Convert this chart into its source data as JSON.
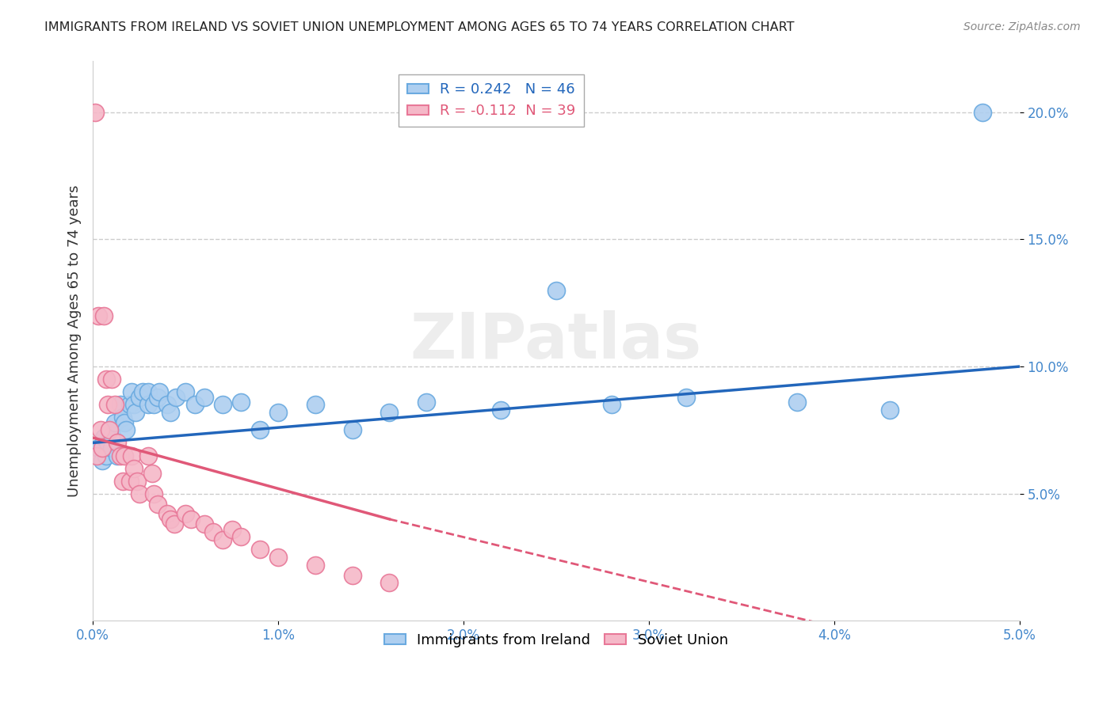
{
  "title": "IMMIGRANTS FROM IRELAND VS SOVIET UNION UNEMPLOYMENT AMONG AGES 65 TO 74 YEARS CORRELATION CHART",
  "source": "Source: ZipAtlas.com",
  "ylabel": "Unemployment Among Ages 65 to 74 years",
  "xmin": 0.0,
  "xmax": 0.05,
  "ymin": 0.0,
  "ymax": 0.22,
  "ireland_color": "#aecff0",
  "ireland_edge": "#6aaae0",
  "soviet_color": "#f5b8c8",
  "soviet_edge": "#e87898",
  "ireland_R": 0.242,
  "ireland_N": 46,
  "soviet_R": -0.112,
  "soviet_N": 39,
  "ireland_line_color": "#2266bb",
  "soviet_line_color": "#e05878",
  "watermark": "ZIPatlas",
  "legend_ireland": "Immigrants from Ireland",
  "legend_soviet": "Soviet Union",
  "ireland_x": [
    0.0003,
    0.0005,
    0.0006,
    0.0007,
    0.0008,
    0.0009,
    0.001,
    0.001,
    0.0012,
    0.0013,
    0.0015,
    0.0016,
    0.0017,
    0.0018,
    0.002,
    0.0021,
    0.0022,
    0.0023,
    0.0025,
    0.0027,
    0.003,
    0.003,
    0.0033,
    0.0035,
    0.0036,
    0.004,
    0.0042,
    0.0045,
    0.005,
    0.0055,
    0.006,
    0.007,
    0.008,
    0.009,
    0.01,
    0.012,
    0.014,
    0.016,
    0.018,
    0.022,
    0.025,
    0.028,
    0.032,
    0.038,
    0.043,
    0.048
  ],
  "ireland_y": [
    0.068,
    0.063,
    0.072,
    0.065,
    0.07,
    0.075,
    0.068,
    0.073,
    0.078,
    0.065,
    0.085,
    0.08,
    0.078,
    0.075,
    0.085,
    0.09,
    0.085,
    0.082,
    0.088,
    0.09,
    0.085,
    0.09,
    0.085,
    0.088,
    0.09,
    0.085,
    0.082,
    0.088,
    0.09,
    0.085,
    0.088,
    0.085,
    0.086,
    0.075,
    0.082,
    0.085,
    0.075,
    0.082,
    0.086,
    0.083,
    0.13,
    0.085,
    0.088,
    0.086,
    0.083,
    0.2
  ],
  "soviet_x": [
    0.0001,
    0.0002,
    0.0003,
    0.0004,
    0.0005,
    0.0006,
    0.0007,
    0.0008,
    0.0009,
    0.001,
    0.0012,
    0.0013,
    0.0015,
    0.0016,
    0.0017,
    0.002,
    0.0021,
    0.0022,
    0.0024,
    0.0025,
    0.003,
    0.0032,
    0.0033,
    0.0035,
    0.004,
    0.0042,
    0.0044,
    0.005,
    0.0053,
    0.006,
    0.0065,
    0.007,
    0.0075,
    0.008,
    0.009,
    0.01,
    0.012,
    0.014,
    0.016
  ],
  "soviet_y": [
    0.2,
    0.065,
    0.12,
    0.075,
    0.068,
    0.12,
    0.095,
    0.085,
    0.075,
    0.095,
    0.085,
    0.07,
    0.065,
    0.055,
    0.065,
    0.055,
    0.065,
    0.06,
    0.055,
    0.05,
    0.065,
    0.058,
    0.05,
    0.046,
    0.042,
    0.04,
    0.038,
    0.042,
    0.04,
    0.038,
    0.035,
    0.032,
    0.036,
    0.033,
    0.028,
    0.025,
    0.022,
    0.018,
    0.015
  ],
  "xtick_labels": [
    "0.0%",
    "1.0%",
    "2.0%",
    "3.0%",
    "4.0%",
    "5.0%"
  ],
  "xtick_vals": [
    0.0,
    0.01,
    0.02,
    0.03,
    0.04,
    0.05
  ],
  "ytick_labels": [
    "5.0%",
    "10.0%",
    "15.0%",
    "20.0%"
  ],
  "ytick_vals": [
    0.05,
    0.1,
    0.15,
    0.2
  ],
  "background_color": "#ffffff",
  "grid_color": "#cccccc"
}
